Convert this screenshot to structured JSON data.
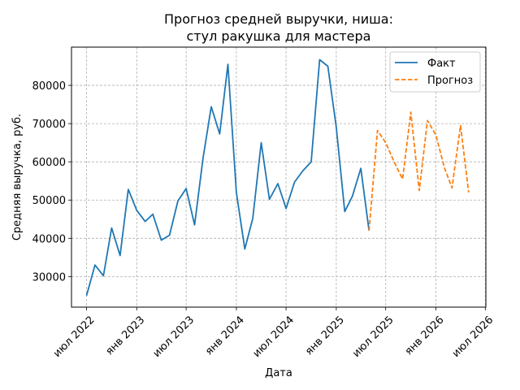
{
  "chart_data": {
    "type": "line",
    "title": [
      "Прогноз средней выручки, ниша:",
      "стул ракушка для мастера"
    ],
    "xlabel": "Дата",
    "ylabel": "Средняя выручка, руб.",
    "x_ticks": [
      {
        "date": "2022-07-01",
        "label": "июл 2022"
      },
      {
        "date": "2023-01-01",
        "label": "янв 2023"
      },
      {
        "date": "2023-07-01",
        "label": "июл 2023"
      },
      {
        "date": "2024-01-01",
        "label": "янв 2024"
      },
      {
        "date": "2024-07-01",
        "label": "июл 2024"
      },
      {
        "date": "2025-01-01",
        "label": "янв 2025"
      },
      {
        "date": "2025-07-01",
        "label": "июл 2025"
      },
      {
        "date": "2026-01-01",
        "label": "янв 2026"
      },
      {
        "date": "2026-07-01",
        "label": "июл 2026"
      }
    ],
    "y_ticks": [
      30000,
      40000,
      50000,
      60000,
      70000,
      80000
    ],
    "xlim": [
      "2022-05-07",
      "2026-07-03"
    ],
    "ylim": [
      22000,
      90000
    ],
    "grid": true,
    "legend_position": "top-right",
    "series": [
      {
        "name": "Факт",
        "color": "#1f77b4",
        "style": "solid",
        "points": [
          [
            "2022-07-01",
            25000
          ],
          [
            "2022-08-01",
            33000
          ],
          [
            "2022-09-01",
            30200
          ],
          [
            "2022-10-01",
            42700
          ],
          [
            "2022-11-01",
            35500
          ],
          [
            "2022-12-01",
            52800
          ],
          [
            "2023-01-01",
            47300
          ],
          [
            "2023-02-01",
            44400
          ],
          [
            "2023-03-01",
            46300
          ],
          [
            "2023-04-01",
            39500
          ],
          [
            "2023-05-01",
            40800
          ],
          [
            "2023-06-01",
            49800
          ],
          [
            "2023-07-01",
            53000
          ],
          [
            "2023-08-01",
            43500
          ],
          [
            "2023-09-01",
            61000
          ],
          [
            "2023-10-01",
            74400
          ],
          [
            "2023-11-01",
            67300
          ],
          [
            "2023-12-01",
            85500
          ],
          [
            "2024-01-01",
            52000
          ],
          [
            "2024-02-01",
            37200
          ],
          [
            "2024-03-01",
            45200
          ],
          [
            "2024-04-01",
            65000
          ],
          [
            "2024-05-01",
            50200
          ],
          [
            "2024-06-01",
            54300
          ],
          [
            "2024-07-01",
            47800
          ],
          [
            "2024-08-01",
            54700
          ],
          [
            "2024-09-01",
            57700
          ],
          [
            "2024-10-01",
            60000
          ],
          [
            "2024-11-01",
            86700
          ],
          [
            "2024-12-01",
            85000
          ],
          [
            "2025-01-01",
            69000
          ],
          [
            "2025-02-01",
            47000
          ],
          [
            "2025-03-01",
            51000
          ],
          [
            "2025-04-01",
            58300
          ],
          [
            "2025-05-01",
            42000
          ]
        ]
      },
      {
        "name": "Прогноз",
        "color": "#ff7f0e",
        "style": "dashed",
        "points": [
          [
            "2025-05-01",
            42000
          ],
          [
            "2025-06-01",
            68200
          ],
          [
            "2025-07-01",
            65000
          ],
          [
            "2025-08-01",
            60000
          ],
          [
            "2025-09-01",
            55500
          ],
          [
            "2025-10-01",
            73000
          ],
          [
            "2025-11-01",
            52500
          ],
          [
            "2025-12-01",
            70800
          ],
          [
            "2026-01-01",
            67000
          ],
          [
            "2026-02-01",
            58500
          ],
          [
            "2026-03-01",
            53200
          ],
          [
            "2026-04-01",
            69500
          ],
          [
            "2026-05-01",
            52000
          ]
        ]
      }
    ]
  }
}
